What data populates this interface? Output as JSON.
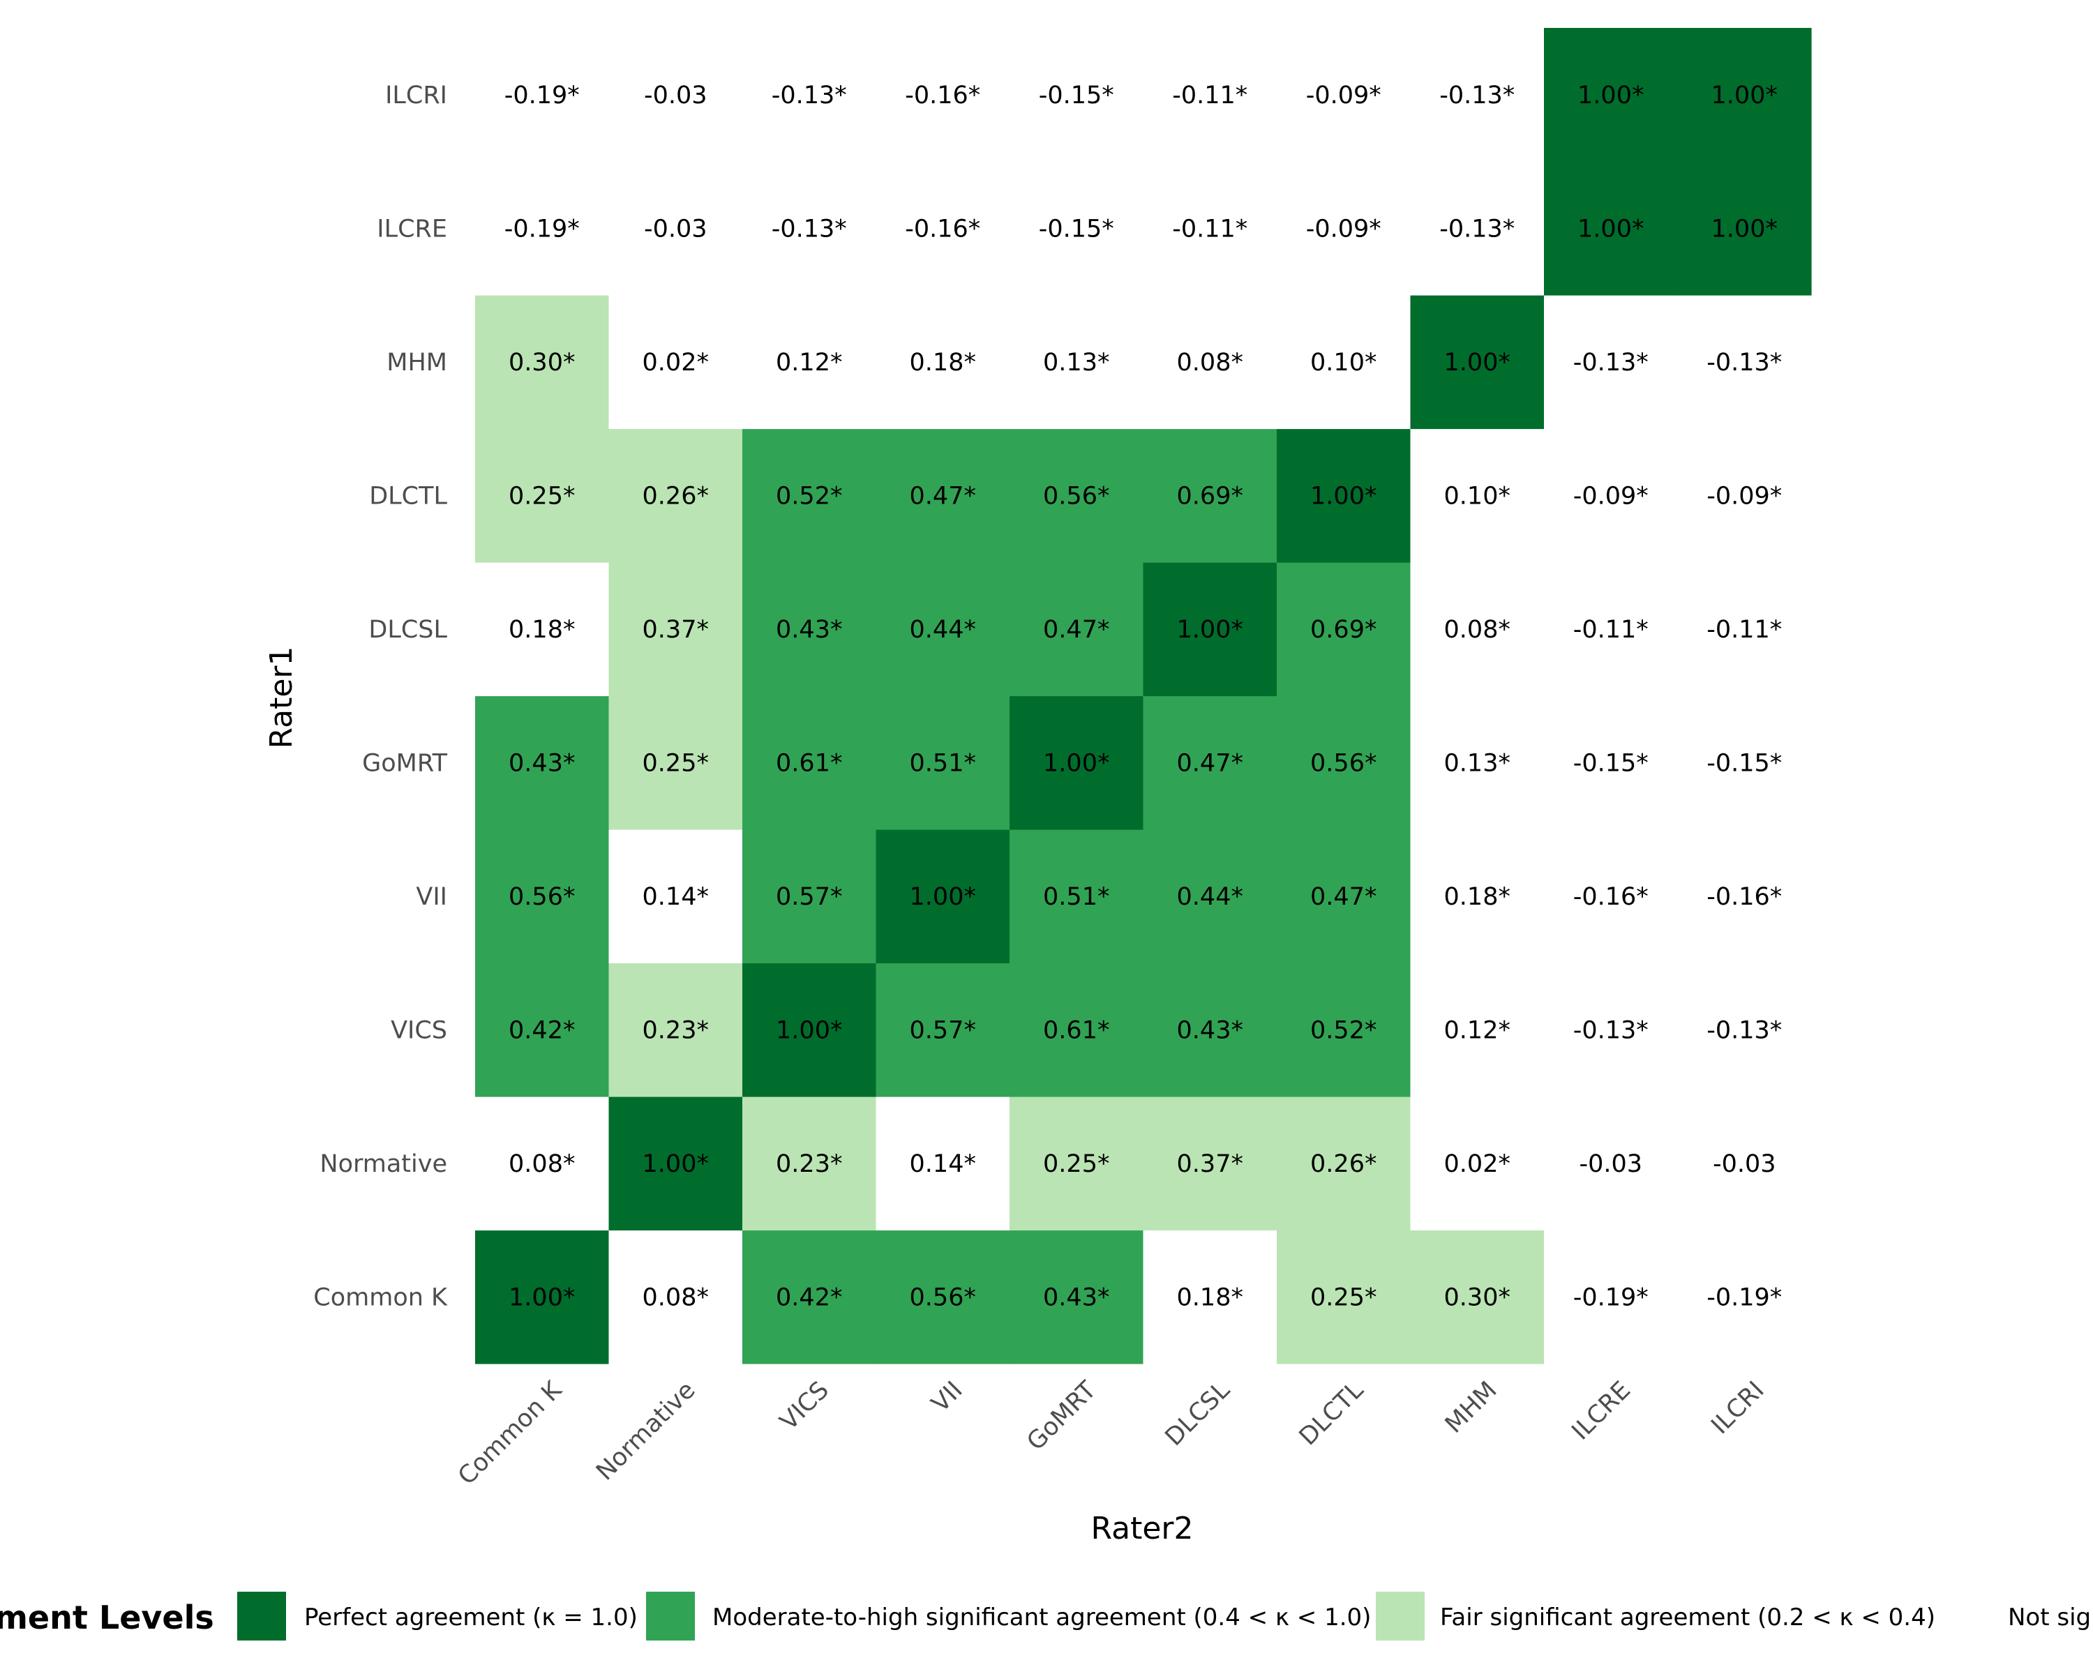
{
  "chart_data": {
    "type": "heatmap",
    "xlabel": "Rater2",
    "ylabel": "Rater1",
    "x_categories": [
      "Common K",
      "Normative",
      "VICS",
      "VII",
      "GoMRT",
      "DLCSL",
      "DLCTL",
      "MHM",
      "ILCRE",
      "ILCRI"
    ],
    "y_categories_bottom_to_top": [
      "Common K",
      "Normative",
      "VICS",
      "VII",
      "GoMRT",
      "DLCSL",
      "DLCTL",
      "MHM",
      "ILCRE",
      "ILCRI"
    ],
    "values": [
      [
        1.0,
        0.08,
        0.42,
        0.56,
        0.43,
        0.18,
        0.25,
        0.3,
        -0.19,
        -0.19
      ],
      [
        0.08,
        1.0,
        0.23,
        0.14,
        0.25,
        0.37,
        0.26,
        0.02,
        -0.03,
        -0.03
      ],
      [
        0.42,
        0.23,
        1.0,
        0.57,
        0.61,
        0.43,
        0.52,
        0.12,
        -0.13,
        -0.13
      ],
      [
        0.56,
        0.14,
        0.57,
        1.0,
        0.51,
        0.44,
        0.47,
        0.18,
        -0.16,
        -0.16
      ],
      [
        0.43,
        0.25,
        0.61,
        0.51,
        1.0,
        0.47,
        0.56,
        0.13,
        -0.15,
        -0.15
      ],
      [
        0.18,
        0.37,
        0.43,
        0.44,
        0.47,
        1.0,
        0.69,
        0.08,
        -0.11,
        -0.11
      ],
      [
        0.25,
        0.26,
        0.52,
        0.47,
        0.56,
        0.69,
        1.0,
        0.1,
        -0.09,
        -0.09
      ],
      [
        0.3,
        0.02,
        0.12,
        0.18,
        0.13,
        0.08,
        0.1,
        1.0,
        -0.13,
        -0.13
      ],
      [
        -0.19,
        -0.03,
        -0.13,
        -0.16,
        -0.15,
        -0.11,
        -0.09,
        -0.13,
        1.0,
        1.0
      ],
      [
        -0.19,
        -0.03,
        -0.13,
        -0.16,
        -0.15,
        -0.11,
        -0.09,
        -0.13,
        1.0,
        1.0
      ]
    ],
    "significant": [
      [
        true,
        true,
        true,
        true,
        true,
        true,
        true,
        true,
        true,
        true
      ],
      [
        true,
        true,
        true,
        true,
        true,
        true,
        true,
        true,
        false,
        false
      ],
      [
        true,
        true,
        true,
        true,
        true,
        true,
        true,
        true,
        true,
        true
      ],
      [
        true,
        true,
        true,
        true,
        true,
        true,
        true,
        true,
        true,
        true
      ],
      [
        true,
        true,
        true,
        true,
        true,
        true,
        true,
        true,
        true,
        true
      ],
      [
        true,
        true,
        true,
        true,
        true,
        true,
        true,
        true,
        true,
        true
      ],
      [
        true,
        true,
        true,
        true,
        true,
        true,
        true,
        true,
        true,
        true
      ],
      [
        true,
        true,
        true,
        true,
        true,
        true,
        true,
        true,
        true,
        true
      ],
      [
        true,
        false,
        true,
        true,
        true,
        true,
        true,
        true,
        true,
        true
      ],
      [
        true,
        false,
        true,
        true,
        true,
        true,
        true,
        true,
        true,
        true
      ]
    ],
    "levels": [
      [
        0,
        3,
        1,
        1,
        1,
        3,
        2,
        2,
        3,
        3
      ],
      [
        3,
        0,
        2,
        3,
        2,
        2,
        2,
        3,
        3,
        3
      ],
      [
        1,
        2,
        0,
        1,
        1,
        1,
        1,
        3,
        3,
        3
      ],
      [
        1,
        3,
        1,
        0,
        1,
        1,
        1,
        3,
        3,
        3
      ],
      [
        1,
        2,
        1,
        1,
        0,
        1,
        1,
        3,
        3,
        3
      ],
      [
        3,
        2,
        1,
        1,
        1,
        0,
        1,
        3,
        3,
        3
      ],
      [
        2,
        2,
        1,
        1,
        1,
        1,
        0,
        3,
        3,
        3
      ],
      [
        2,
        3,
        3,
        3,
        3,
        3,
        3,
        0,
        3,
        3
      ],
      [
        3,
        3,
        3,
        3,
        3,
        3,
        3,
        3,
        0,
        0
      ],
      [
        3,
        3,
        3,
        3,
        3,
        3,
        3,
        3,
        0,
        0
      ]
    ],
    "level_colors": [
      "#006d2c",
      "#31a354",
      "#bae4b3",
      "#ffffff"
    ],
    "legend": {
      "title": "ment Levels",
      "placement": "bottom",
      "entries": [
        {
          "label": "Perfect agreement (κ = 1.0)",
          "color": "#006d2c"
        },
        {
          "label": "Moderate-to-high significant agreement (0.4 < κ < 1.0)",
          "color": "#31a354"
        },
        {
          "label": "Fair significant agreement (0.2 < κ < 0.4)",
          "color": "#bae4b3"
        },
        {
          "label": "Not sig",
          "color": "#ffffff"
        }
      ]
    }
  }
}
